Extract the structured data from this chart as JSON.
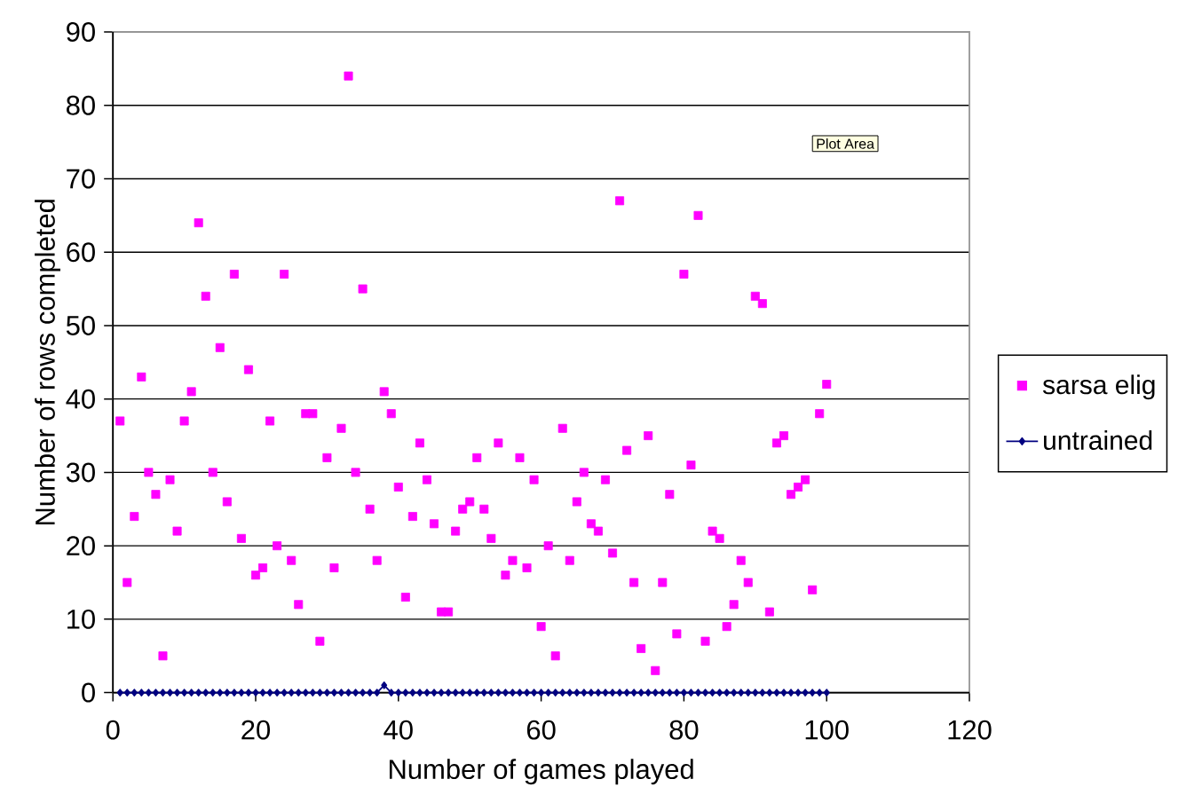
{
  "chart_data": {
    "type": "scatter",
    "xlabel": "Number of games played",
    "ylabel": "Number of rows completed",
    "annotations": [
      "Plot Area"
    ],
    "xlim": [
      0,
      120
    ],
    "xticks": [
      0,
      20,
      40,
      60,
      80,
      100,
      120
    ],
    "ylim": [
      0,
      90
    ],
    "yticks": [
      0,
      10,
      20,
      30,
      40,
      50,
      60,
      70,
      80,
      90
    ],
    "grid": "y",
    "legend": "right",
    "series": [
      {
        "name": "sarsa elig",
        "color": "#ff00ff",
        "marker": "square",
        "x": [
          1,
          2,
          3,
          4,
          5,
          6,
          7,
          8,
          9,
          10,
          11,
          12,
          13,
          14,
          15,
          16,
          17,
          18,
          19,
          20,
          21,
          22,
          23,
          24,
          25,
          26,
          27,
          28,
          29,
          30,
          31,
          32,
          33,
          34,
          35,
          36,
          37,
          38,
          39,
          40,
          41,
          42,
          43,
          44,
          45,
          46,
          47,
          48,
          49,
          50,
          51,
          52,
          53,
          54,
          55,
          56,
          57,
          58,
          59,
          60,
          61,
          62,
          63,
          64,
          65,
          66,
          67,
          68,
          69,
          70,
          71,
          72,
          73,
          74,
          75,
          76,
          77,
          78,
          79,
          80,
          81,
          82,
          83,
          84,
          85,
          86,
          87,
          88,
          89,
          90,
          91,
          92,
          93,
          94,
          95,
          96,
          97,
          98,
          99,
          100
        ],
        "values": [
          37,
          15,
          24,
          43,
          30,
          27,
          5,
          29,
          22,
          37,
          41,
          64,
          54,
          30,
          47,
          26,
          57,
          21,
          44,
          16,
          17,
          37,
          20,
          57,
          18,
          12,
          38,
          38,
          7,
          32,
          17,
          36,
          84,
          30,
          55,
          25,
          18,
          41,
          38,
          28,
          13,
          24,
          34,
          29,
          23,
          11,
          11,
          22,
          25,
          26,
          32,
          25,
          21,
          34,
          16,
          18,
          32,
          17,
          29,
          9,
          20,
          5,
          36,
          18,
          26,
          30,
          23,
          22,
          29,
          19,
          67,
          33,
          15,
          6,
          35,
          3,
          15,
          27,
          8,
          57,
          31,
          65,
          7,
          22,
          21,
          9,
          12,
          18,
          15,
          54,
          53,
          11,
          34,
          35,
          27,
          28,
          29,
          14,
          38,
          42
        ]
      },
      {
        "name": "untrained",
        "type": "line",
        "color": "#000080",
        "marker": "diamond",
        "x": [
          1,
          2,
          3,
          4,
          5,
          6,
          7,
          8,
          9,
          10,
          11,
          12,
          13,
          14,
          15,
          16,
          17,
          18,
          19,
          20,
          21,
          22,
          23,
          24,
          25,
          26,
          27,
          28,
          29,
          30,
          31,
          32,
          33,
          34,
          35,
          36,
          37,
          38,
          39,
          40,
          41,
          42,
          43,
          44,
          45,
          46,
          47,
          48,
          49,
          50,
          51,
          52,
          53,
          54,
          55,
          56,
          57,
          58,
          59,
          60,
          61,
          62,
          63,
          64,
          65,
          66,
          67,
          68,
          69,
          70,
          71,
          72,
          73,
          74,
          75,
          76,
          77,
          78,
          79,
          80,
          81,
          82,
          83,
          84,
          85,
          86,
          87,
          88,
          89,
          90,
          91,
          92,
          93,
          94,
          95,
          96,
          97,
          98,
          99,
          100
        ],
        "values": [
          0,
          0,
          0,
          0,
          0,
          0,
          0,
          0,
          0,
          0,
          0,
          0,
          0,
          0,
          0,
          0,
          0,
          0,
          0,
          0,
          0,
          0,
          0,
          0,
          0,
          0,
          0,
          0,
          0,
          0,
          0,
          0,
          0,
          0,
          0,
          0,
          0,
          1,
          0,
          0,
          0,
          0,
          0,
          0,
          0,
          0,
          0,
          0,
          0,
          0,
          0,
          0,
          0,
          0,
          0,
          0,
          0,
          0,
          0,
          0,
          0,
          0,
          0,
          0,
          0,
          0,
          0,
          0,
          0,
          0,
          0,
          0,
          0,
          0,
          0,
          0,
          0,
          0,
          0,
          0,
          0,
          0,
          0,
          0,
          0,
          0,
          0,
          0,
          0,
          0,
          0,
          0,
          0,
          0,
          0,
          0,
          0,
          0,
          0,
          0
        ]
      }
    ]
  }
}
